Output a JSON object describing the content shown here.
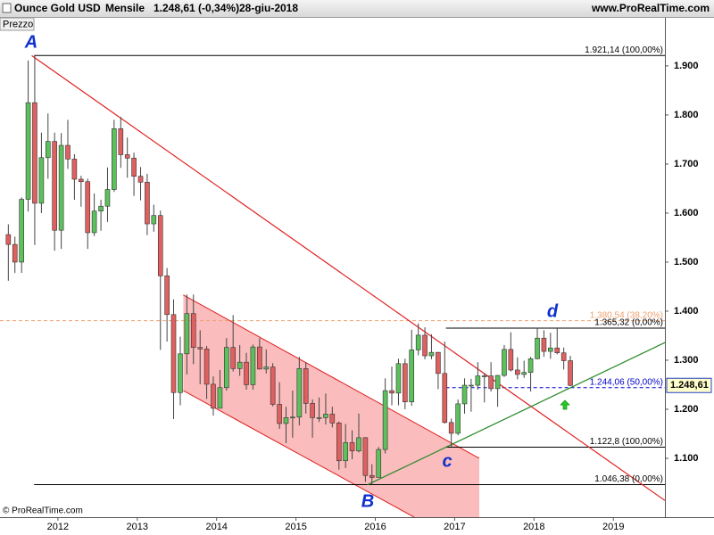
{
  "header": {
    "instrument": "Ounce Gold USD",
    "period": "Mensile",
    "quote": "1.248,61 (-0,34%)",
    "date": "28-giu-2018",
    "site": "www.ProRealTime.com"
  },
  "panel_label": "Prezzo",
  "copyright": "© ProRealTime.com",
  "chart_data": {
    "type": "candlestick",
    "up_color": "#5cc05c",
    "down_color": "#e06060",
    "x": [
      2011.375,
      2011.458,
      2011.542,
      2011.625,
      2011.708,
      2011.792,
      2011.875,
      2011.958,
      2012.042,
      2012.125,
      2012.208,
      2012.292,
      2012.375,
      2012.458,
      2012.542,
      2012.625,
      2012.708,
      2012.792,
      2012.875,
      2012.958,
      2013.042,
      2013.125,
      2013.208,
      2013.292,
      2013.375,
      2013.458,
      2013.542,
      2013.625,
      2013.708,
      2013.792,
      2013.875,
      2013.958,
      2014.042,
      2014.125,
      2014.208,
      2014.292,
      2014.375,
      2014.458,
      2014.542,
      2014.625,
      2014.708,
      2014.792,
      2014.875,
      2014.958,
      2015.042,
      2015.125,
      2015.208,
      2015.292,
      2015.375,
      2015.458,
      2015.542,
      2015.625,
      2015.708,
      2015.792,
      2015.875,
      2015.958,
      2016.042,
      2016.125,
      2016.208,
      2016.292,
      2016.375,
      2016.458,
      2016.542,
      2016.625,
      2016.708,
      2016.792,
      2016.875,
      2016.958,
      2017.042,
      2017.125,
      2017.208,
      2017.292,
      2017.375,
      2017.458,
      2017.542,
      2017.625,
      2017.708,
      2017.792,
      2017.875,
      2017.958,
      2018.042,
      2018.125,
      2018.208,
      2018.292,
      2018.375,
      2018.458
    ],
    "open": [
      1556,
      1536,
      1500,
      1628,
      1825,
      1620,
      1713,
      1746,
      1565,
      1738,
      1710,
      1669,
      1664,
      1560,
      1604,
      1614,
      1648,
      1772,
      1719,
      1712,
      1675,
      1663,
      1578,
      1595,
      1472,
      1393,
      1234,
      1313,
      1395,
      1326,
      1323,
      1251,
      1202,
      1244,
      1326,
      1283,
      1296,
      1250,
      1327,
      1282,
      1286,
      1210,
      1171,
      1183,
      1184,
      1283,
      1212,
      1183,
      1183,
      1190,
      1172,
      1095,
      1132,
      1115,
      1142,
      1065,
      1061,
      1118,
      1238,
      1233,
      1293,
      1215,
      1321,
      1351,
      1309,
      1316,
      1273,
      1173,
      1151,
      1211,
      1249,
      1249,
      1268,
      1268,
      1242,
      1269,
      1322,
      1280,
      1271,
      1275,
      1303,
      1345,
      1318,
      1325,
      1315,
      1299
    ],
    "high": [
      1577,
      1552,
      1632,
      1911,
      1921.14,
      1764,
      1803,
      1764,
      1763,
      1790,
      1720,
      1676,
      1670,
      1640,
      1627,
      1693,
      1790,
      1796,
      1754,
      1723,
      1694,
      1680,
      1617,
      1605,
      1488,
      1424,
      1348,
      1434,
      1434,
      1361,
      1329,
      1267,
      1280,
      1345,
      1392,
      1331,
      1315,
      1332,
      1345,
      1322,
      1294,
      1255,
      1205,
      1238,
      1307,
      1296,
      1220,
      1224,
      1232,
      1205,
      1175,
      1170,
      1157,
      1191,
      1143,
      1088,
      1123,
      1263,
      1287,
      1303,
      1303,
      1362,
      1375,
      1367,
      1353,
      1317,
      1338,
      1181,
      1220,
      1263,
      1262,
      1296,
      1274,
      1296,
      1270,
      1331,
      1357,
      1306,
      1299,
      1307,
      1366,
      1361,
      1356,
      1365.32,
      1326,
      1309
    ],
    "low": [
      1462,
      1478,
      1478,
      1603,
      1535,
      1600,
      1670,
      1523,
      1527,
      1690,
      1627,
      1613,
      1527,
      1553,
      1564,
      1582,
      1643,
      1692,
      1672,
      1635,
      1626,
      1555,
      1562,
      1321,
      1338,
      1180,
      1208,
      1271,
      1292,
      1251,
      1221,
      1187,
      1202,
      1238,
      1277,
      1268,
      1240,
      1240,
      1281,
      1273,
      1206,
      1160,
      1131,
      1142,
      1167,
      1191,
      1142,
      1174,
      1169,
      1163,
      1077,
      1080,
      1098,
      1112,
      1052,
      1046.38,
      1061,
      1110,
      1208,
      1208,
      1200,
      1207,
      1310,
      1302,
      1302,
      1241,
      1171,
      1122.8,
      1147,
      1191,
      1195,
      1240,
      1214,
      1236,
      1205,
      1266,
      1277,
      1261,
      1264,
      1236,
      1302,
      1307,
      1303,
      1312,
      1281,
      1247
    ],
    "close": [
      1536,
      1500,
      1628,
      1825,
      1620,
      1713,
      1746,
      1565,
      1738,
      1710,
      1669,
      1664,
      1560,
      1604,
      1614,
      1648,
      1772,
      1719,
      1712,
      1675,
      1663,
      1578,
      1595,
      1472,
      1393,
      1234,
      1313,
      1395,
      1326,
      1323,
      1251,
      1202,
      1244,
      1326,
      1283,
      1296,
      1250,
      1327,
      1282,
      1286,
      1210,
      1171,
      1183,
      1184,
      1283,
      1212,
      1183,
      1183,
      1190,
      1172,
      1095,
      1132,
      1115,
      1142,
      1065,
      1061,
      1118,
      1238,
      1233,
      1293,
      1215,
      1321,
      1351,
      1309,
      1316,
      1273,
      1173,
      1151,
      1211,
      1249,
      1249,
      1268,
      1268,
      1242,
      1269,
      1322,
      1280,
      1271,
      1275,
      1303,
      1345,
      1318,
      1325,
      1315,
      1299,
      1248.61
    ],
    "xlim": [
      2011.27,
      2019.65
    ],
    "xticks": [
      2012,
      2013,
      2014,
      2015,
      2016,
      2017,
      2018,
      2019
    ],
    "ylim": [
      980,
      1998
    ],
    "yticks": [
      {
        "value": 1100,
        "label": "1.100"
      },
      {
        "value": 1200,
        "label": "1.200"
      },
      {
        "value": 1300,
        "label": "1.300"
      },
      {
        "value": 1400,
        "label": "1.400"
      },
      {
        "value": 1500,
        "label": "1.500"
      },
      {
        "value": 1600,
        "label": "1.600"
      },
      {
        "value": 1700,
        "label": "1.700"
      },
      {
        "value": 1800,
        "label": "1.800"
      },
      {
        "value": 1900,
        "label": "1.900"
      }
    ],
    "last_price": {
      "value": 1248.61,
      "label": "1.248,61"
    },
    "levels": [
      {
        "value": 1921.14,
        "label": "1.921,14 (100,00%)",
        "color": "#000000",
        "dashed": false,
        "from": 2011.7
      },
      {
        "value": 1380.54,
        "label": "1.380,54 (38,20%)",
        "color": "#f0a070",
        "dashed": true,
        "from": 2011.27
      },
      {
        "value": 1365.32,
        "label": "1.365,32 (0,00%)",
        "color": "#000000",
        "dashed": false,
        "from": 2016.89
      },
      {
        "value": 1244.06,
        "label": "1.244,06 (50,00%)",
        "color": "#0000cc",
        "dashed": true,
        "from": 2016.89
      },
      {
        "value": 1122.8,
        "label": "1.122,8 (100,00%)",
        "color": "#000000",
        "dashed": false,
        "from": 2016.89
      },
      {
        "value": 1046.38,
        "label": "1.046,38 (0,00%)",
        "color": "#000000",
        "dashed": false,
        "from": 2011.7
      }
    ],
    "lines": [
      {
        "color": "#e02020",
        "x": [
          2011.67,
          2019.65
        ],
        "y": [
          1921,
          1014
        ]
      },
      {
        "color": "#2a8a2a",
        "x": [
          2015.9,
          2019.65
        ],
        "y": [
          1046,
          1336
        ]
      }
    ],
    "channel": {
      "color": "#e02020",
      "fill": "#f9b0b0",
      "x": [
        2013.58,
        2017.31,
        2017.31,
        2016.49,
        2013.58
      ],
      "y": [
        1433,
        1100,
        980,
        980,
        1238
      ]
    },
    "annotations": [
      "A",
      "B",
      "c",
      "d"
    ]
  }
}
